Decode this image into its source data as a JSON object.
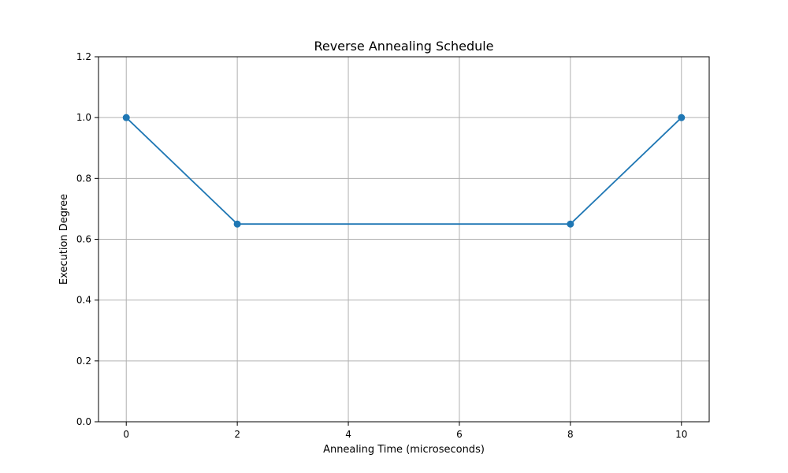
{
  "chart_data": {
    "type": "line",
    "title": "Reverse Annealing Schedule",
    "xlabel": "Annealing Time (microseconds)",
    "ylabel": "Execution Degree",
    "xlim": [
      -0.5,
      10.5
    ],
    "ylim": [
      0.0,
      1.2
    ],
    "xticks": [
      0,
      2,
      4,
      6,
      8,
      10
    ],
    "xtick_labels": [
      "0",
      "2",
      "4",
      "6",
      "8",
      "10"
    ],
    "yticks": [
      0.0,
      0.2,
      0.4,
      0.6,
      0.8,
      1.0,
      1.2
    ],
    "ytick_labels": [
      "0.0",
      "0.2",
      "0.4",
      "0.6",
      "0.8",
      "1.0",
      "1.2"
    ],
    "grid": true,
    "series": [
      {
        "x": [
          0,
          2,
          8,
          10
        ],
        "y": [
          1.0,
          0.65,
          0.65,
          1.0
        ],
        "color": "#1f77b4",
        "marker": "circle"
      }
    ]
  }
}
